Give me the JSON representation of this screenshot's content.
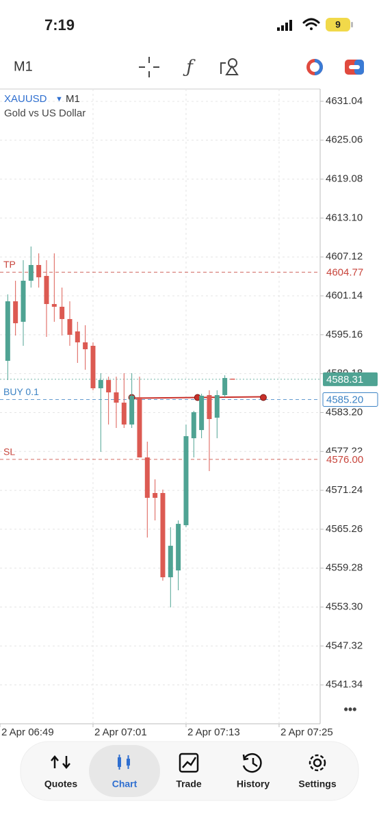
{
  "status_bar": {
    "time": "7:19",
    "battery": "9"
  },
  "toolbar": {
    "timeframe": "M1"
  },
  "chart_data": {
    "type": "candlestick",
    "symbol": "XAUUSD",
    "timeframe": "M1",
    "description": "Gold vs US Dollar",
    "x": [
      1,
      2,
      3,
      4,
      5,
      6,
      7,
      8,
      9,
      10,
      11,
      12,
      13,
      14,
      15,
      16,
      17,
      18,
      19,
      20,
      21,
      22,
      23,
      24,
      25,
      26,
      27,
      28,
      29,
      30
    ],
    "open": [
      4591.15,
      4600.3,
      4597.15,
      4603.46,
      4605.88,
      4604.2,
      4599.88,
      4599.46,
      4597.57,
      4595.67,
      4593.99,
      4593.46,
      4586.93,
      4588.2,
      4586.3,
      4584.72,
      4581.36,
      4585.57,
      4576.3,
      4570.83,
      4570.83,
      4557.88,
      4558.93,
      4565.88,
      4579.25,
      4580.51,
      4585.88,
      4582.41,
      4585.88,
      4588.41
    ],
    "high": [
      4601.36,
      4603.46,
      4606.62,
      4608.72,
      4607.67,
      4606.62,
      4607.67,
      4602.41,
      4600.3,
      4597.15,
      4596.62,
      4593.99,
      4589.25,
      4588.72,
      4588.72,
      4589.25,
      4589.25,
      4588.72,
      4578.72,
      4572.93,
      4571.36,
      4565.57,
      4566.62,
      4581.36,
      4583.46,
      4586.09,
      4586.62,
      4586.62,
      4588.93,
      4588.41
    ],
    "low": [
      4588.2,
      4595.04,
      4593.46,
      4602.41,
      4602.41,
      4594.83,
      4597.15,
      4595.04,
      4593.46,
      4590.83,
      4589.78,
      4586.62,
      4577.15,
      4581.36,
      4580.83,
      4580.83,
      4580.83,
      4576.3,
      4563.99,
      4566.62,
      4557.36,
      4553.25,
      4555.88,
      4565.57,
      4576.3,
      4579.25,
      4574.2,
      4579.25,
      4585.57,
      4588.31
    ],
    "close": [
      4600.3,
      4596.93,
      4603.46,
      4605.88,
      4603.99,
      4599.88,
      4599.46,
      4597.57,
      4595.15,
      4593.99,
      4592.93,
      4586.93,
      4588.2,
      4586.3,
      4584.72,
      4581.36,
      4585.78,
      4576.3,
      4570.09,
      4570.09,
      4557.88,
      4562.72,
      4566.09,
      4579.57,
      4583.25,
      4585.78,
      4582.2,
      4585.88,
      4588.51,
      4588.31
    ],
    "up_color": "#4fa393",
    "down_color": "#dc5a52",
    "xlim": [
      0,
      41.3
    ],
    "xticks": [
      {
        "value": 0,
        "label": "2 Apr 06:49"
      },
      {
        "value": 12,
        "label": "2 Apr 07:01"
      },
      {
        "value": 24,
        "label": "2 Apr 07:13"
      },
      {
        "value": 36,
        "label": "2 Apr 07:25"
      }
    ],
    "ylim": [
      4535.36,
      4632.93
    ],
    "yticks": [
      4631.04,
      4625.06,
      4619.08,
      {
        "value": 4613.1,
        "label": "4613.10"
      },
      4607.12,
      4601.14,
      4595.16,
      4589.18,
      {
        "value": 4583.2,
        "label": "4583.20"
      },
      4577.22,
      4571.24,
      4565.26,
      4559.28,
      {
        "value": 4553.3,
        "label": "4553.30"
      },
      4547.32,
      4541.34
    ],
    "grid": true,
    "levels": [
      {
        "name": "TP",
        "price": 4604.77,
        "color": "#c8453c",
        "box": "plain"
      },
      {
        "price": 4588.31,
        "color": "#4fa393",
        "box": "filled"
      },
      {
        "name": "BUY 0.1",
        "price": {
          "value": 4585.2,
          "label": "4585.20"
        },
        "color": "#3b82c4",
        "box": "outline"
      },
      {
        "name": "SL",
        "price": {
          "value": 4576,
          "label": "4576.00"
        },
        "color": "#c8453c",
        "box": "plain"
      }
    ],
    "more": "•••"
  },
  "tab_bar": {
    "tabs": [
      {
        "label": "Quotes"
      },
      {
        "label": "Chart"
      },
      {
        "label": "Trade"
      },
      {
        "label": "History"
      },
      {
        "label": "Settings"
      }
    ],
    "active": 1
  }
}
